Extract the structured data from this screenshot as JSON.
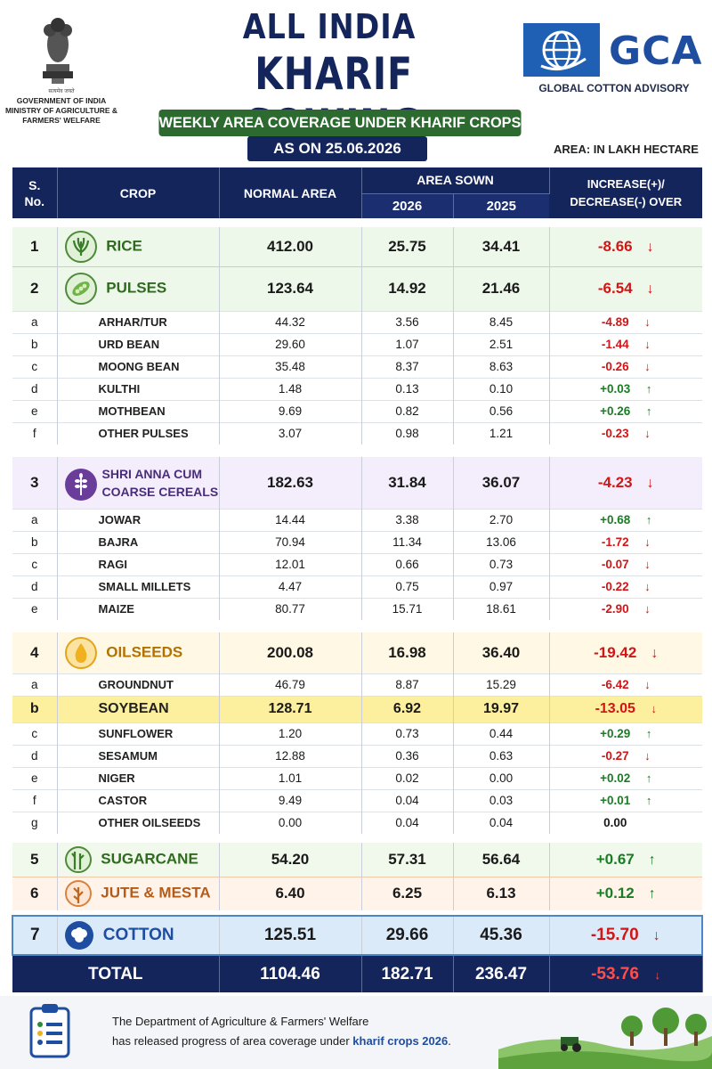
{
  "header": {
    "govt_hindi": "सत्यमेव जयते",
    "govt_line1": "GOVERNMENT OF INDIA",
    "govt_line2": "MINISTRY OF AGRICULTURE &",
    "govt_line3": "FARMERS' WELFARE",
    "title_line1": "ALL INDIA",
    "title_line2": "KHARIF SOWING",
    "subtitle": "WEEKLY AREA COVERAGE UNDER KHARIF CROPS",
    "date": "AS ON 25.06.2026",
    "area_unit": "AREA:  IN LAKH HECTARE",
    "logo_text": "GCA",
    "logo_subtext": "GLOBAL COTTON ADVISORY",
    "brand_color": "#1f4ea0",
    "title_color": "#14255c"
  },
  "table": {
    "headers": {
      "sno_line1": "S.",
      "sno_line2": "No.",
      "crop": "CROP",
      "normal": "NORMAL AREA",
      "area_sown": "AREA SOWN",
      "year1": "2026",
      "year2": "2025",
      "diff_line1": "INCREASE(+)/",
      "diff_line2": "DECREASE(-)  OVER"
    },
    "rice": {
      "no": "1",
      "name": "RICE",
      "normal": "412.00",
      "y2026": "25.75",
      "y2025": "34.41",
      "diff": "-8.66"
    },
    "pulses": {
      "no": "2",
      "name": "PULSES",
      "normal": "123.64",
      "y2026": "14.92",
      "y2025": "21.46",
      "diff": "-6.54",
      "items": [
        {
          "no": "a",
          "name": "ARHAR/TUR",
          "normal": "44.32",
          "y2026": "3.56",
          "y2025": "8.45",
          "diff": "-4.89"
        },
        {
          "no": "b",
          "name": "URD BEAN",
          "normal": "29.60",
          "y2026": "1.07",
          "y2025": "2.51",
          "diff": "-1.44"
        },
        {
          "no": "c",
          "name": "MOONG BEAN",
          "normal": "35.48",
          "y2026": "8.37",
          "y2025": "8.63",
          "diff": "-0.26"
        },
        {
          "no": "d",
          "name": "KULTHI",
          "normal": "1.48",
          "y2026": "0.13",
          "y2025": "0.10",
          "diff": "+0.03"
        },
        {
          "no": "e",
          "name": "MOTHBEAN",
          "normal": "9.69",
          "y2026": "0.82",
          "y2025": "0.56",
          "diff": "+0.26"
        },
        {
          "no": "f",
          "name": "OTHER PULSES",
          "normal": "3.07",
          "y2026": "0.98",
          "y2025": "1.21",
          "diff": "-0.23"
        }
      ]
    },
    "cereals": {
      "no": "3",
      "name_line1": "SHRI ANNA CUM",
      "name_line2": "COARSE CEREALS",
      "normal": "182.63",
      "y2026": "31.84",
      "y2025": "36.07",
      "diff": "-4.23",
      "items": [
        {
          "no": "a",
          "name": "JOWAR",
          "normal": "14.44",
          "y2026": "3.38",
          "y2025": "2.70",
          "diff": "+0.68"
        },
        {
          "no": "b",
          "name": "BAJRA",
          "normal": "70.94",
          "y2026": "11.34",
          "y2025": "13.06",
          "diff": "-1.72"
        },
        {
          "no": "c",
          "name": "RAGI",
          "normal": "12.01",
          "y2026": "0.66",
          "y2025": "0.73",
          "diff": "-0.07"
        },
        {
          "no": "d",
          "name": "SMALL MILLETS",
          "normal": "4.47",
          "y2026": "0.75",
          "y2025": "0.97",
          "diff": "-0.22"
        },
        {
          "no": "e",
          "name": "MAIZE",
          "normal": "80.77",
          "y2026": "15.71",
          "y2025": "18.61",
          "diff": "-2.90"
        }
      ]
    },
    "oilseeds": {
      "no": "4",
      "name": "OILSEEDS",
      "normal": "200.08",
      "y2026": "16.98",
      "y2025": "36.40",
      "diff": "-19.42",
      "items": [
        {
          "no": "a",
          "name": "GROUNDNUT",
          "normal": "46.79",
          "y2026": "8.87",
          "y2025": "15.29",
          "diff": "-6.42"
        },
        {
          "no": "b",
          "name": "SOYBEAN",
          "normal": "128.71",
          "y2026": "6.92",
          "y2025": "19.97",
          "diff": "-13.05"
        },
        {
          "no": "c",
          "name": "SUNFLOWER",
          "normal": "1.20",
          "y2026": "0.73",
          "y2025": "0.44",
          "diff": "+0.29"
        },
        {
          "no": "d",
          "name": "SESAMUM",
          "normal": "12.88",
          "y2026": "0.36",
          "y2025": "0.63",
          "diff": "-0.27"
        },
        {
          "no": "e",
          "name": "NIGER",
          "normal": "1.01",
          "y2026": "0.02",
          "y2025": "0.00",
          "diff": "+0.02"
        },
        {
          "no": "f",
          "name": "CASTOR",
          "normal": "9.49",
          "y2026": "0.04",
          "y2025": "0.03",
          "diff": "+0.01"
        },
        {
          "no": "g",
          "name": "OTHER OILSEEDS",
          "normal": "0.00",
          "y2026": "0.04",
          "y2025": "0.04",
          "diff": "0.00"
        }
      ]
    },
    "sugarcane": {
      "no": "5",
      "name": "SUGARCANE",
      "normal": "54.20",
      "y2026": "57.31",
      "y2025": "56.64",
      "diff": "+0.67"
    },
    "jute": {
      "no": "6",
      "name": "JUTE & MESTA",
      "normal": "6.40",
      "y2026": "6.25",
      "y2025": "6.13",
      "diff": "+0.12"
    },
    "cotton": {
      "no": "7",
      "name": "COTTON",
      "normal": "125.51",
      "y2026": "29.66",
      "y2025": "45.36",
      "diff": "-15.70"
    },
    "total": {
      "label": "TOTAL",
      "normal": "1104.46",
      "y2026": "182.71",
      "y2025": "236.47",
      "diff": "-53.76"
    }
  },
  "footer": {
    "line1": "The Department of Agriculture & Farmers' Welfare",
    "line2_prefix": "has released progress of area coverage under ",
    "line2_highlight": "kharif crops 2026",
    "line2_suffix": "."
  },
  "icons": {
    "rice": "rice-plant-icon",
    "pulses": "pulses-pod-icon",
    "cereals": "millet-grain-icon",
    "oilseeds": "oil-drop-icon",
    "sugarcane": "sugarcane-icon",
    "jute": "jute-plant-icon",
    "cotton": "cotton-boll-icon",
    "down_arrow": "down-arrow-icon",
    "up_arrow": "up-arrow-icon"
  },
  "colors": {
    "decrease": "#d01616",
    "increase": "#1a7d26",
    "header_navy": "#14255c",
    "soybean_highlight": "#fcef9e"
  }
}
